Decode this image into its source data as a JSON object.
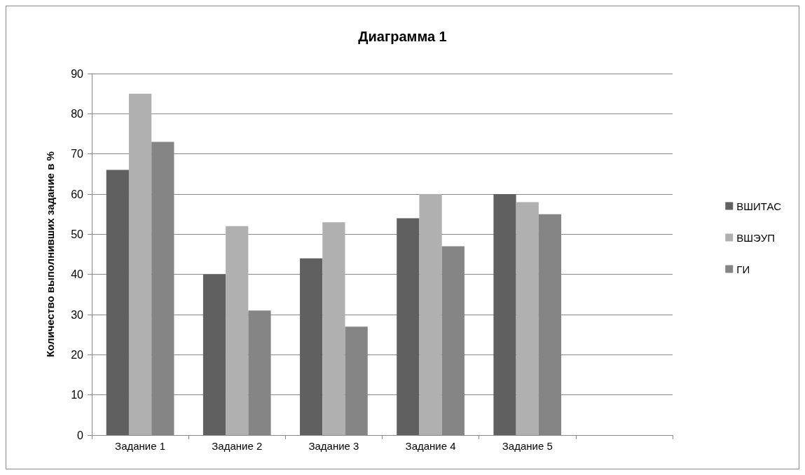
{
  "chart_data": {
    "type": "bar",
    "title": "Диаграмма 1",
    "ylabel": "Количество выполнивших задание в %",
    "categories": [
      "Задание 1",
      "Задание 2",
      "Задание 3",
      "Задание 4",
      "Задание 5",
      null
    ],
    "series": [
      {
        "name": "ВШИТАС",
        "color": "#606060",
        "values": [
          66,
          40,
          44,
          54,
          60,
          null
        ]
      },
      {
        "name": "ВШЭУП",
        "color": "#b0b0b0",
        "values": [
          85,
          52,
          53,
          60,
          58,
          null
        ]
      },
      {
        "name": "ГИ",
        "color": "#858585",
        "values": [
          73,
          31,
          27,
          47,
          55,
          null
        ]
      }
    ],
    "ylim": [
      0,
      90
    ],
    "yticks": [
      0,
      10,
      20,
      30,
      40,
      50,
      60,
      70,
      80,
      90
    ],
    "grid": "y",
    "legend": "right"
  }
}
